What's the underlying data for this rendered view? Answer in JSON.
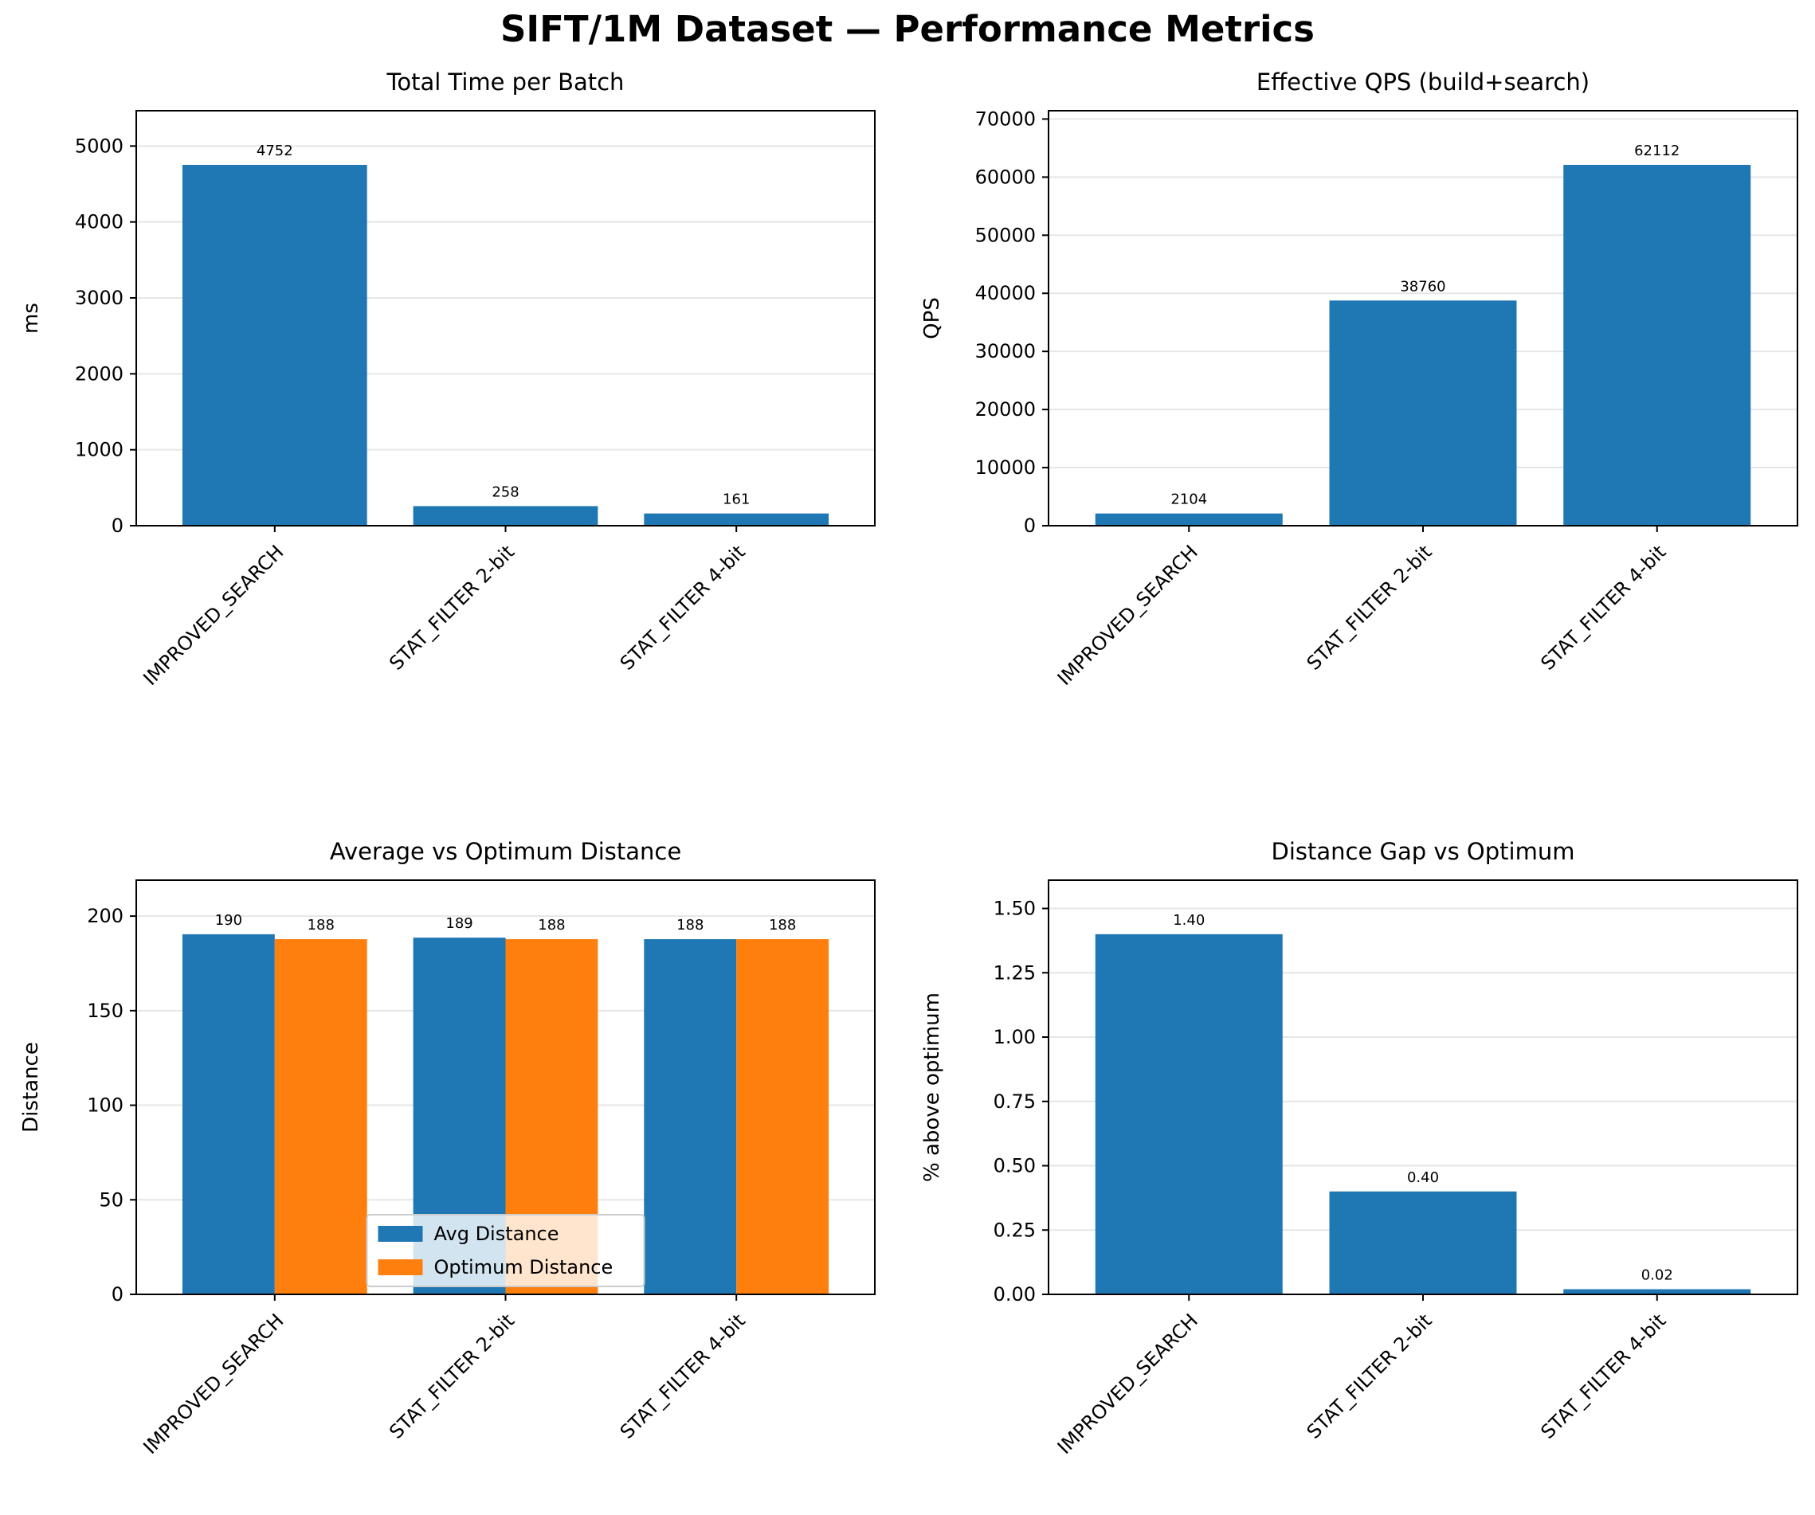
{
  "suptitle": "SIFT/1M Dataset — Performance Metrics",
  "colors": {
    "blue": "#1f77b4",
    "orange": "#ff7f0e",
    "grid": "#e6e6e6"
  },
  "chart_data": [
    {
      "type": "bar",
      "title": "Total Time per Batch",
      "xlabel": "",
      "ylabel": "ms",
      "categories": [
        "IMPROVED_SEARCH",
        "STAT_FILTER 2-bit",
        "STAT_FILTER 4-bit"
      ],
      "series": [
        {
          "values": [
            4752,
            258,
            161
          ],
          "labels": [
            "4752",
            "258",
            "161"
          ]
        }
      ],
      "ylim": [
        0,
        5465
      ],
      "yticks": [
        0,
        1000,
        2000,
        3000,
        4000,
        5000
      ],
      "yticklabels": [
        "0",
        "1000",
        "2000",
        "3000",
        "4000",
        "5000"
      ],
      "grid": "y",
      "legend": "none"
    },
    {
      "type": "bar",
      "title": "Effective QPS (build+search)",
      "xlabel": "",
      "ylabel": "QPS",
      "categories": [
        "IMPROVED_SEARCH",
        "STAT_FILTER 2-bit",
        "STAT_FILTER 4-bit"
      ],
      "series": [
        {
          "values": [
            2104,
            38760,
            62112
          ],
          "labels": [
            "2104",
            "38760",
            "62112"
          ]
        }
      ],
      "ylim": [
        0,
        71430
      ],
      "yticks": [
        0,
        10000,
        20000,
        30000,
        40000,
        50000,
        60000,
        70000
      ],
      "yticklabels": [
        "0",
        "10000",
        "20000",
        "30000",
        "40000",
        "50000",
        "60000",
        "70000"
      ],
      "grid": "y",
      "legend": "none"
    },
    {
      "type": "bar",
      "title": "Average vs Optimum Distance",
      "xlabel": "",
      "ylabel": "Distance",
      "categories": [
        "IMPROVED_SEARCH",
        "STAT_FILTER 2-bit",
        "STAT_FILTER 4-bit"
      ],
      "series": [
        {
          "name": "Avg Distance",
          "values": [
            190.4,
            188.6,
            187.8
          ],
          "labels": [
            "190",
            "189",
            "188"
          ]
        },
        {
          "name": "Optimum Distance",
          "values": [
            187.8,
            187.8,
            187.8
          ],
          "labels": [
            "188",
            "188",
            "188"
          ]
        }
      ],
      "ylim": [
        0,
        219
      ],
      "yticks": [
        0,
        50,
        100,
        150,
        200
      ],
      "yticklabels": [
        "0",
        "50",
        "100",
        "150",
        "200"
      ],
      "grid": "y",
      "legend": "lower center"
    },
    {
      "type": "bar",
      "title": "Distance Gap vs Optimum",
      "xlabel": "",
      "ylabel": "% above optimum",
      "categories": [
        "IMPROVED_SEARCH",
        "STAT_FILTER 2-bit",
        "STAT_FILTER 4-bit"
      ],
      "series": [
        {
          "values": [
            1.4,
            0.4,
            0.02
          ],
          "labels": [
            "1.40",
            "0.40",
            "0.02"
          ]
        }
      ],
      "ylim": [
        0,
        1.61
      ],
      "yticks": [
        0,
        0.25,
        0.5,
        0.75,
        1.0,
        1.25,
        1.5
      ],
      "yticklabels": [
        "0.00",
        "0.25",
        "0.50",
        "0.75",
        "1.00",
        "1.25",
        "1.50"
      ],
      "grid": "y",
      "legend": "none"
    }
  ]
}
